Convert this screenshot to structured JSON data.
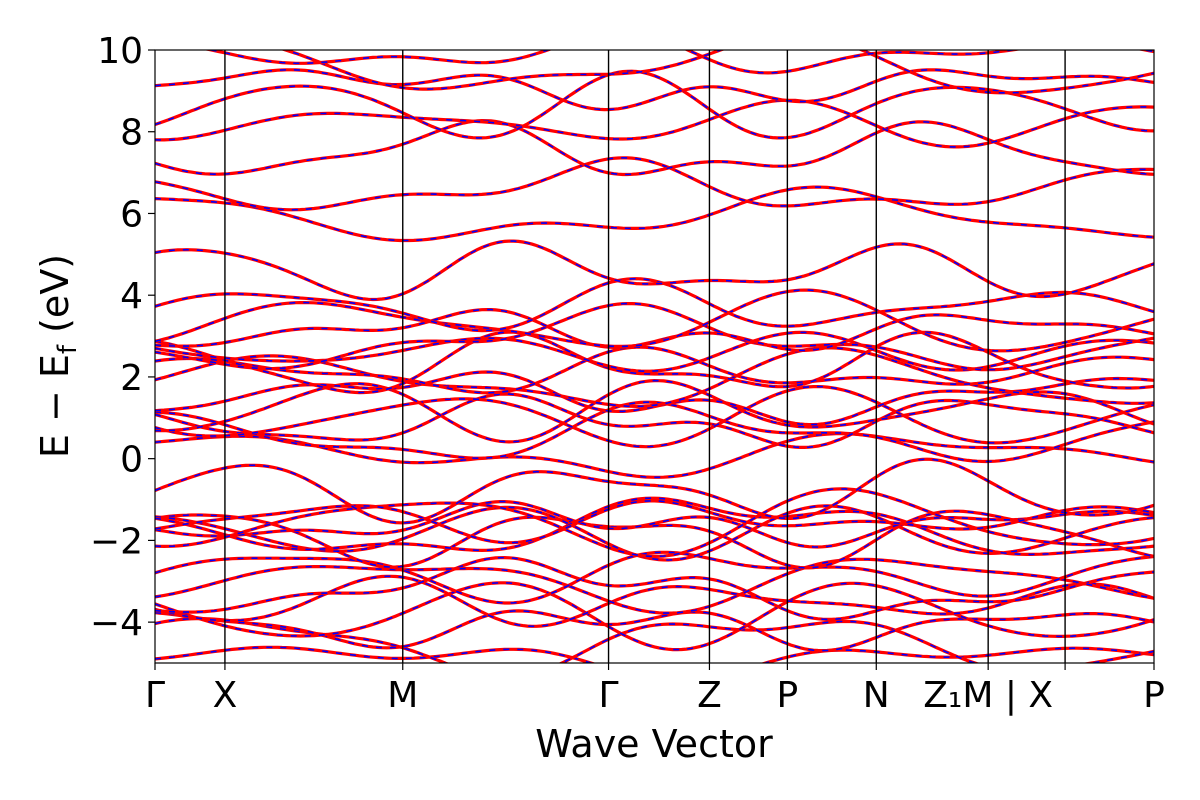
{
  "chart_data": {
    "type": "line",
    "xlabel": "Wave Vector",
    "ylabel": "E − E",
    "ylabel_sub": "f",
    "ylabel_unit": " (eV)",
    "ylim": [
      -5,
      10
    ],
    "yticks": [
      {
        "value": -4,
        "label": "−4"
      },
      {
        "value": -2,
        "label": "−2"
      },
      {
        "value": 0,
        "label": "0"
      },
      {
        "value": 2,
        "label": "2"
      },
      {
        "value": 4,
        "label": "4"
      },
      {
        "value": 6,
        "label": "6"
      },
      {
        "value": 8,
        "label": "8"
      },
      {
        "value": 10,
        "label": "10"
      }
    ],
    "xlim": [
      0,
      1
    ],
    "kpoints": [
      {
        "x": 0.0,
        "label": "Γ"
      },
      {
        "x": 0.07,
        "label": "X"
      },
      {
        "x": 0.248,
        "label": "M"
      },
      {
        "x": 0.454,
        "label": "Γ"
      },
      {
        "x": 0.555,
        "label": "Z"
      },
      {
        "x": 0.633,
        "label": "P"
      },
      {
        "x": 0.722,
        "label": "N"
      },
      {
        "x": 0.834,
        "label": "Z₁M | X"
      },
      {
        "x": 0.911,
        "label": ""
      },
      {
        "x": 1.0,
        "label": "P"
      }
    ],
    "series_styles": [
      {
        "color": "#ff0000",
        "style": "solid"
      },
      {
        "color": "#0000ff",
        "style": "dashed"
      }
    ],
    "grid": false,
    "bands_at_gamma": [
      -4.9,
      -4.5,
      -4.1,
      -3.8,
      -3.5,
      -3.2,
      -3.0,
      -2.8,
      -1.9,
      -1.8,
      -1.7,
      -1.6,
      -1.55,
      -1.5,
      -0.8,
      0.1,
      0.6,
      0.9,
      1.0,
      1.2,
      1.5,
      1.9,
      2.1,
      2.3,
      2.6,
      2.9,
      3.1,
      3.3,
      3.7,
      4.6,
      5.9,
      6.6,
      7.5,
      8.2,
      8.6,
      9.1,
      9.6,
      9.9
    ]
  }
}
